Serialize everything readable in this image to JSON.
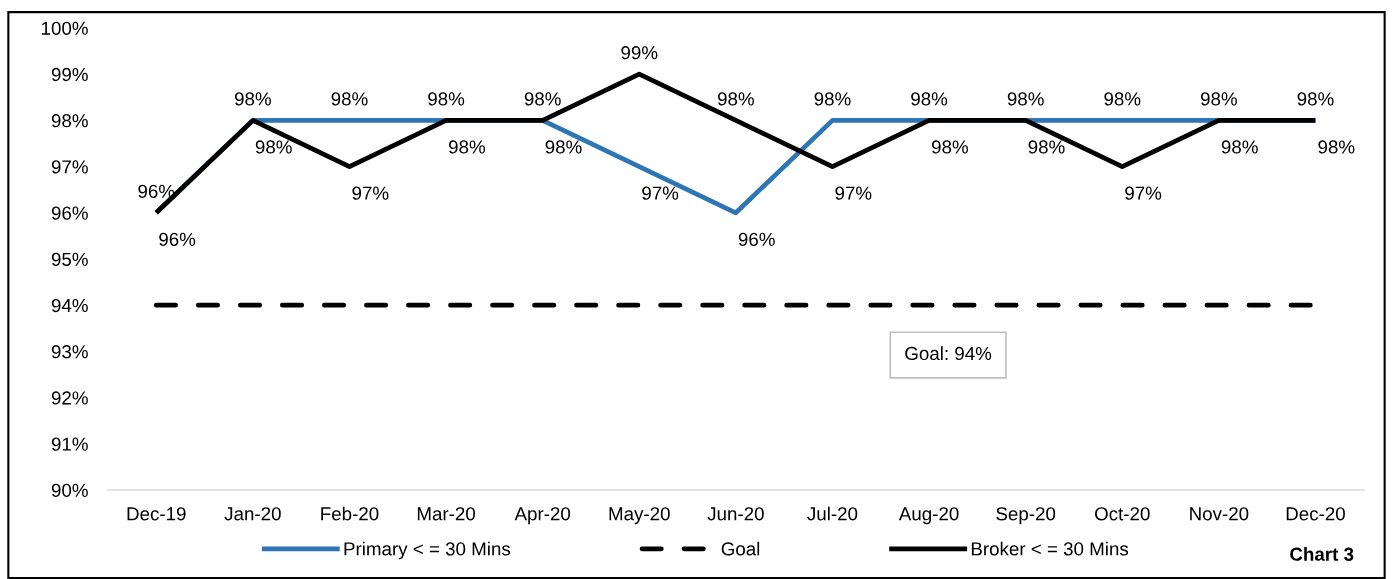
{
  "chart_data": {
    "type": "line",
    "categories": [
      "Dec-19",
      "Jan-20",
      "Feb-20",
      "Mar-20",
      "Apr-20",
      "May-20",
      "Jun-20",
      "Jul-20",
      "Aug-20",
      "Sep-20",
      "Oct-20",
      "Nov-20",
      "Dec-20"
    ],
    "series": [
      {
        "name": "Primary < = 30 Mins",
        "color": "#2e75b6",
        "values": [
          96,
          98,
          98,
          98,
          98,
          97,
          96,
          98,
          98,
          98,
          98,
          98,
          98
        ],
        "value_labels": [
          "96%",
          "98%",
          "98%",
          "98%",
          "98%",
          "97%",
          "96%",
          "98%",
          "98%",
          "98%",
          "98%",
          "98%",
          "98%"
        ]
      },
      {
        "name": "Goal",
        "color": "#000000",
        "line_style": "dashed",
        "values": [
          94,
          94,
          94,
          94,
          94,
          94,
          94,
          94,
          94,
          94,
          94,
          94,
          94
        ]
      },
      {
        "name": "Broker < = 30 Mins",
        "color": "#000000",
        "values": [
          96,
          98,
          97,
          98,
          98,
          99,
          98,
          97,
          98,
          98,
          97,
          98,
          98
        ],
        "value_labels": [
          "96%",
          "98%",
          "97%",
          "98%",
          "98%",
          "99%",
          "98%",
          "97%",
          "98%",
          "98%",
          "97%",
          "98%",
          "98%"
        ]
      }
    ],
    "ylim": [
      90,
      100
    ],
    "yticks": [
      {
        "value": 90,
        "label": "90%"
      },
      {
        "value": 91,
        "label": "91%"
      },
      {
        "value": 92,
        "label": "92%"
      },
      {
        "value": 93,
        "label": "93%"
      },
      {
        "value": 94,
        "label": "94%"
      },
      {
        "value": 95,
        "label": "95%"
      },
      {
        "value": 96,
        "label": "96%"
      },
      {
        "value": 97,
        "label": "97%"
      },
      {
        "value": 98,
        "label": "98%"
      },
      {
        "value": 99,
        "label": "99%"
      },
      {
        "value": 100,
        "label": "100%"
      }
    ],
    "legend": "bottom",
    "annotations": [
      "Goal: 94%",
      "Chart 3"
    ]
  }
}
